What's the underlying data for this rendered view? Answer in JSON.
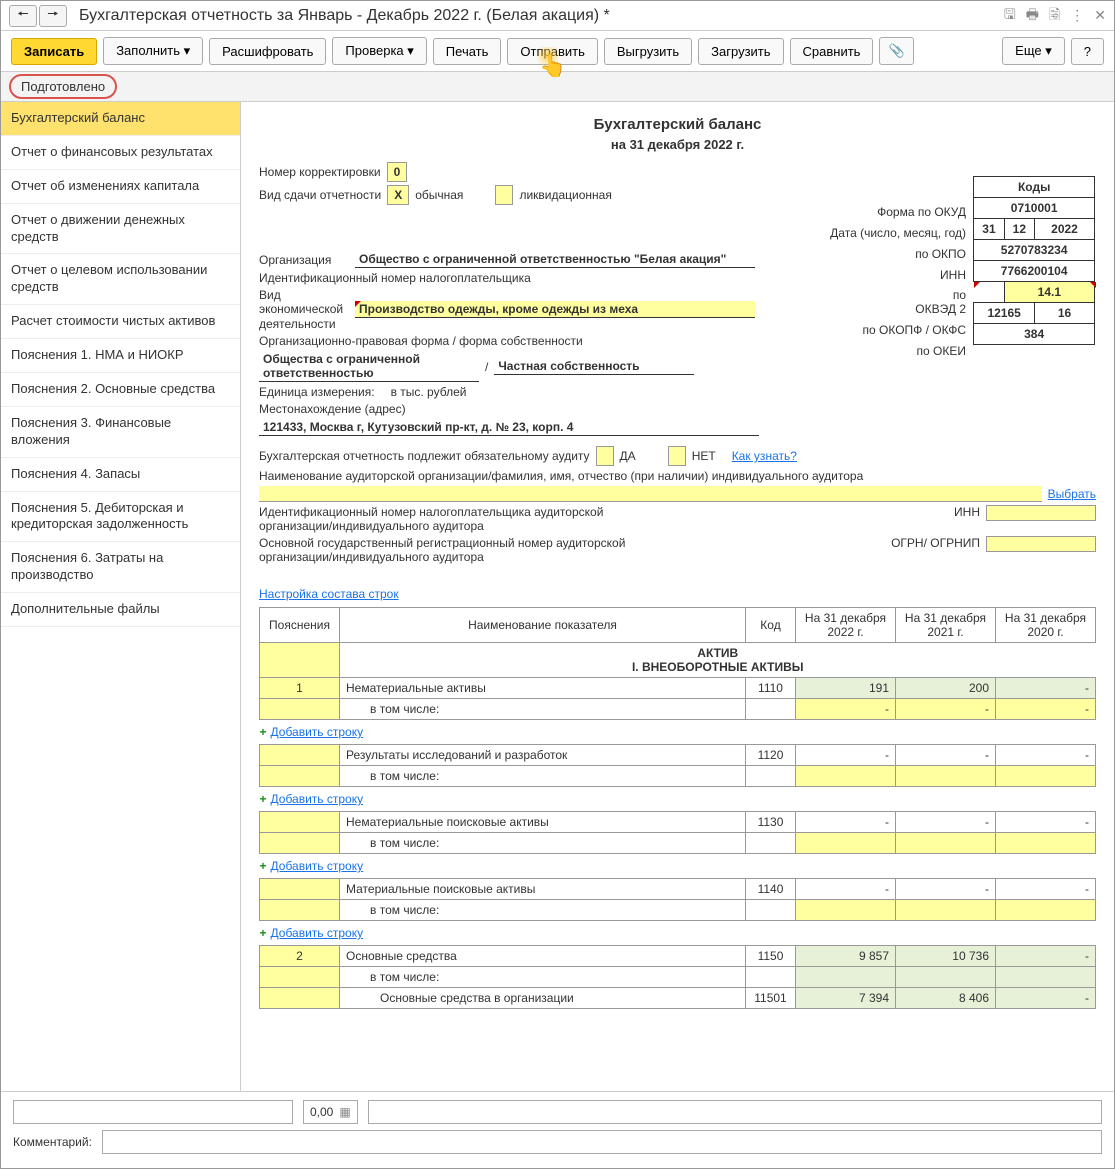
{
  "title": "Бухгалтерская отчетность за Январь - Декабрь 2022 г. (Белая акация) *",
  "toolbar": {
    "write": "Записать",
    "fill": "Заполнить",
    "decode": "Расшифровать",
    "check": "Проверка",
    "print": "Печать",
    "send": "Отправить",
    "unload": "Выгрузить",
    "load": "Загрузить",
    "compare": "Сравнить",
    "more": "Еще",
    "help": "?"
  },
  "status": "Подготовлено",
  "sidebar": [
    "Бухгалтерский баланс",
    "Отчет о финансовых результатах",
    "Отчет об изменениях капитала",
    "Отчет о движении денежных средств",
    "Отчет о целевом использовании средств",
    "Расчет стоимости чистых активов",
    "Пояснения 1. НМА и НИОКР",
    "Пояснения 2. Основные средства",
    "Пояснения 3. Финансовые вложения",
    "Пояснения 4. Запасы",
    "Пояснения 5. Дебиторская и кредиторская задолженность",
    "Пояснения 6. Затраты на производство",
    "Дополнительные файлы"
  ],
  "form": {
    "title": "Бухгалтерский баланс",
    "date": "на 31 декабря 2022 г.",
    "corr_label": "Номер корректировки",
    "corr_value": "0",
    "type_label": "Вид сдачи отчетности",
    "type_x": "X",
    "type_normal": "обычная",
    "type_liq": "ликвидационная",
    "codes_header": "Коды",
    "okud_label": "Форма по ОКУД",
    "okud_value": "0710001",
    "date_label": "Дата (число, месяц, год)",
    "date_d": "31",
    "date_m": "12",
    "date_y": "2022",
    "org_label": "Организация",
    "org_value": "Общество с ограниченной ответственностью \"Белая акация\"",
    "okpo_label": "по ОКПО",
    "okpo_value": "5270783234",
    "inn_label_row": "Идентификационный номер налогоплательщика",
    "inn_label": "ИНН",
    "inn_value": "7766200104",
    "activity_label1": "Вид экономической",
    "activity_label2": "деятельности",
    "activity_value": "Производство одежды, кроме одежды из меха",
    "okved_label": "по ОКВЭД 2",
    "okved_value": "14.1",
    "opf_label": "Организационно-правовая форма / форма собственности",
    "opf_value1": "Общества с ограниченной ответственностью",
    "opf_sep": "/",
    "opf_value2": "Частная собственность",
    "okopf_label": "по ОКОПФ / ОКФС",
    "okopf_v1": "12165",
    "okopf_v2": "16",
    "unit_label": "Единица измерения:",
    "unit_value": "в тыс. рублей",
    "okei_label": "по ОКЕИ",
    "okei_value": "384",
    "addr_label": "Местонахождение (адрес)",
    "addr_value": "121433, Москва г, Кутузовский пр-кт, д. № 23, корп. 4",
    "audit_label": "Бухгалтерская отчетность подлежит обязательному аудиту",
    "audit_yes": "ДА",
    "audit_no": "НЕТ",
    "audit_how": "Как узнать?",
    "auditor_name_label": "Наименование аудиторской организации/фамилия, имя, отчество (при наличии) индивидуального аудитора",
    "select_link": "Выбрать",
    "aud_inn_label": "Идентификационный номер налогоплательщика аудиторской организации/индивидуального аудитора",
    "aud_inn_s": "ИНН",
    "aud_ogrn_label": "Основной государственный регистрационный номер аудиторской организации/индивидуального аудитора",
    "aud_ogrn_s": "ОГРН/ ОГРНИП",
    "rows_link": "Настройка состава строк"
  },
  "table": {
    "headers": [
      "Пояснения",
      "Наименование показателя",
      "Код",
      "На 31 декабря 2022 г.",
      "На 31 декабря 2021 г.",
      "На 31 декабря 2020 г."
    ],
    "section1": "АКТИВ",
    "section2": "I. ВНЕОБОРОТНЫЕ АКТИВЫ",
    "add_row": "Добавить строку",
    "sub": "в том числе:",
    "rows": [
      {
        "p": "1",
        "name": "Нематериальные активы",
        "code": "1110",
        "v1": "191",
        "v2": "200",
        "v3": "-"
      },
      {
        "p": "",
        "name": "Результаты исследований и разработок",
        "code": "1120",
        "v1": "-",
        "v2": "-",
        "v3": "-"
      },
      {
        "p": "",
        "name": "Нематериальные поисковые активы",
        "code": "1130",
        "v1": "-",
        "v2": "-",
        "v3": "-"
      },
      {
        "p": "",
        "name": "Материальные поисковые активы",
        "code": "1140",
        "v1": "-",
        "v2": "-",
        "v3": "-"
      },
      {
        "p": "2",
        "name": "Основные средства",
        "code": "1150",
        "v1": "9 857",
        "v2": "10 736",
        "v3": "-"
      },
      {
        "p": "",
        "name": "Основные средства в организации",
        "code": "11501",
        "v1": "7 394",
        "v2": "8 406",
        "v3": "-"
      }
    ]
  },
  "footer": {
    "amount": "0,00",
    "comment_label": "Комментарий:"
  }
}
